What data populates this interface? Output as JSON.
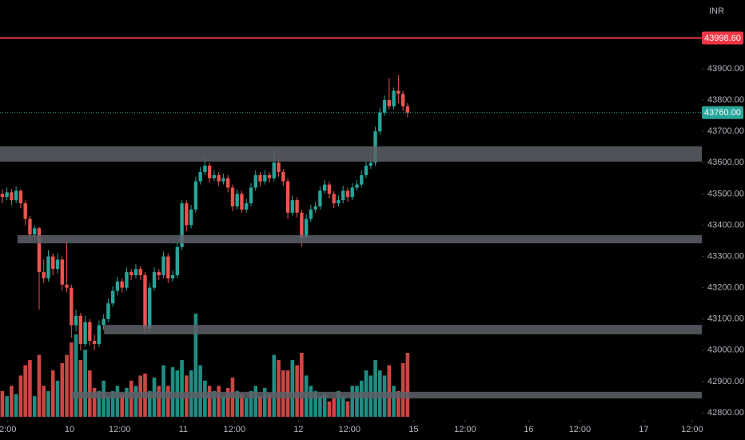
{
  "chart_data": {
    "type": "candlestick",
    "currency": "INR",
    "up_color": "#26a69a",
    "down_color": "#ef5350",
    "zone_color": "#5d6068",
    "ylim": [
      42777,
      44120
    ],
    "yticks": [
      {
        "value": 42800,
        "label": "42800.00"
      },
      {
        "value": 42900,
        "label": "42900.00"
      },
      {
        "value": 43000,
        "label": "43000.00"
      },
      {
        "value": 43100,
        "label": "43100.00"
      },
      {
        "value": 43200,
        "label": "43200.00"
      },
      {
        "value": 43300,
        "label": "43300.00"
      },
      {
        "value": 43400,
        "label": "43400.00"
      },
      {
        "value": 43500,
        "label": "43500.00"
      },
      {
        "value": 43600,
        "label": "43600.00"
      },
      {
        "value": 43700,
        "label": "43700.00"
      },
      {
        "value": 43800,
        "label": "43800.00"
      },
      {
        "value": 43900,
        "label": "43900.00"
      }
    ],
    "xlim": [
      -0.5,
      151.9
    ],
    "xticks": [
      {
        "value": 1.2,
        "label": "2:00"
      },
      {
        "value": 14.6,
        "label": "10"
      },
      {
        "value": 25.5,
        "label": "12:00"
      },
      {
        "value": 39.3,
        "label": "11"
      },
      {
        "value": 50.4,
        "label": "12:00"
      },
      {
        "value": 64.3,
        "label": "12"
      },
      {
        "value": 75.4,
        "label": "12:00"
      },
      {
        "value": 89.3,
        "label": "15"
      },
      {
        "value": 100.5,
        "label": "12:00"
      },
      {
        "value": 114.3,
        "label": "16"
      },
      {
        "value": 125.4,
        "label": "12:00"
      },
      {
        "value": 139.3,
        "label": "17"
      },
      {
        "value": 149.8,
        "label": "12:00"
      }
    ],
    "price_lines": [
      {
        "value": 43998.6,
        "label": "43998.60",
        "color": "#f23645",
        "style": "solid"
      },
      {
        "value": 43760,
        "label": "43760.00",
        "color": "#26a69a",
        "style": "dotted"
      }
    ],
    "zones": [
      {
        "from": 43603,
        "to": 43652,
        "start": -0.5
      },
      {
        "from": 43342,
        "to": 43368,
        "start": 3.3
      },
      {
        "from": 43051,
        "to": 43081,
        "start": 22.1
      },
      {
        "from": 42846,
        "to": 42867,
        "start": 15.1
      }
    ],
    "candles": [
      [
        43500,
        43515,
        43470,
        43490
      ],
      [
        43490,
        43520,
        43480,
        43505
      ],
      [
        43505,
        43515,
        43465,
        43480
      ],
      [
        43480,
        43525,
        43470,
        43510
      ],
      [
        43510,
        43515,
        43455,
        43470
      ],
      [
        43470,
        43480,
        43400,
        43420
      ],
      [
        43420,
        43430,
        43350,
        43370
      ],
      [
        43370,
        43400,
        43355,
        43390
      ],
      [
        43390,
        43395,
        43130,
        43250
      ],
      [
        43250,
        43290,
        43215,
        43230
      ],
      [
        43230,
        43320,
        43220,
        43300
      ],
      [
        43300,
        43310,
        43240,
        43260
      ],
      [
        43260,
        43310,
        43245,
        43290
      ],
      [
        43290,
        43300,
        43190,
        43210
      ],
      [
        43210,
        43360,
        43185,
        43200
      ],
      [
        43200,
        43210,
        43040,
        43080
      ],
      [
        43080,
        43130,
        43060,
        43110
      ],
      [
        43110,
        43120,
        43000,
        43020
      ],
      [
        43020,
        43110,
        43010,
        43090
      ],
      [
        43090,
        43100,
        43015,
        43030
      ],
      [
        43030,
        43050,
        43000,
        43020
      ],
      [
        43020,
        43095,
        43010,
        43080
      ],
      [
        43080,
        43115,
        43065,
        43100
      ],
      [
        43100,
        43165,
        43090,
        43150
      ],
      [
        43150,
        43205,
        43140,
        43190
      ],
      [
        43190,
        43235,
        43175,
        43220
      ],
      [
        43220,
        43230,
        43185,
        43200
      ],
      [
        43200,
        43265,
        43190,
        43250
      ],
      [
        43250,
        43260,
        43225,
        43240
      ],
      [
        43240,
        43275,
        43230,
        43260
      ],
      [
        43260,
        43270,
        43225,
        43240
      ],
      [
        43240,
        43250,
        43055,
        43070
      ],
      [
        43070,
        43215,
        43060,
        43200
      ],
      [
        43200,
        43265,
        43190,
        43250
      ],
      [
        43250,
        43260,
        43225,
        43240
      ],
      [
        43240,
        43315,
        43230,
        43300
      ],
      [
        43300,
        43310,
        43215,
        43230
      ],
      [
        43230,
        43255,
        43220,
        43240
      ],
      [
        43240,
        43345,
        43230,
        43330
      ],
      [
        43330,
        43480,
        43320,
        43470
      ],
      [
        43470,
        43480,
        43380,
        43400
      ],
      [
        43400,
        43465,
        43390,
        43450
      ],
      [
        43450,
        43555,
        43440,
        43540
      ],
      [
        43540,
        43585,
        43530,
        43570
      ],
      [
        43570,
        43620,
        43560,
        43590
      ],
      [
        43590,
        43600,
        43535,
        43550
      ],
      [
        43550,
        43575,
        43540,
        43560
      ],
      [
        43560,
        43570,
        43525,
        43540
      ],
      [
        43540,
        43565,
        43530,
        43550
      ],
      [
        43550,
        43560,
        43505,
        43520
      ],
      [
        43520,
        43530,
        43445,
        43460
      ],
      [
        43460,
        43515,
        43450,
        43500
      ],
      [
        43500,
        43510,
        43440,
        43450
      ],
      [
        43450,
        43485,
        43440,
        43470
      ],
      [
        43470,
        43535,
        43460,
        43520
      ],
      [
        43520,
        43575,
        43510,
        43560
      ],
      [
        43560,
        43570,
        43525,
        43540
      ],
      [
        43540,
        43575,
        43530,
        43560
      ],
      [
        43560,
        43570,
        43535,
        43550
      ],
      [
        43550,
        43640,
        43540,
        43600
      ],
      [
        43600,
        43610,
        43555,
        43570
      ],
      [
        43570,
        43580,
        43525,
        43540
      ],
      [
        43540,
        43550,
        43420,
        43440
      ],
      [
        43440,
        43495,
        43430,
        43480
      ],
      [
        43480,
        43490,
        43425,
        43440
      ],
      [
        43440,
        43450,
        43330,
        43360
      ],
      [
        43360,
        43435,
        43350,
        43420
      ],
      [
        43420,
        43465,
        43410,
        43450
      ],
      [
        43450,
        43475,
        43440,
        43460
      ],
      [
        43460,
        43525,
        43450,
        43510
      ],
      [
        43510,
        43545,
        43500,
        43530
      ],
      [
        43530,
        43540,
        43485,
        43500
      ],
      [
        43500,
        43510,
        43455,
        43470
      ],
      [
        43470,
        43495,
        43460,
        43480
      ],
      [
        43480,
        43525,
        43470,
        43510
      ],
      [
        43510,
        43520,
        43475,
        43490
      ],
      [
        43490,
        43535,
        43480,
        43520
      ],
      [
        43520,
        43545,
        43510,
        43530
      ],
      [
        43530,
        43575,
        43520,
        43560
      ],
      [
        43560,
        43605,
        43550,
        43590
      ],
      [
        43590,
        43615,
        43580,
        43600
      ],
      [
        43600,
        43715,
        43590,
        43700
      ],
      [
        43700,
        43775,
        43690,
        43760
      ],
      [
        43760,
        43815,
        43750,
        43800
      ],
      [
        43800,
        43870,
        43770,
        43780
      ],
      [
        43780,
        43840,
        43770,
        43830
      ],
      [
        43830,
        43880,
        43790,
        43820
      ],
      [
        43820,
        43830,
        43765,
        43780
      ],
      [
        43780,
        43790,
        43745,
        43760
      ]
    ],
    "volumes": [
      25,
      20,
      30,
      22,
      40,
      50,
      55,
      20,
      60,
      30,
      25,
      45,
      35,
      52,
      60,
      72,
      80,
      55,
      65,
      45,
      28,
      25,
      35,
      20,
      25,
      30,
      22,
      28,
      35,
      30,
      40,
      42,
      25,
      38,
      30,
      50,
      30,
      48,
      45,
      55,
      40,
      45,
      100,
      50,
      35,
      30,
      25,
      30,
      20,
      28,
      38,
      25,
      22,
      18,
      25,
      30,
      20,
      28,
      22,
      60,
      55,
      45,
      45,
      55,
      50,
      62,
      40,
      30,
      25,
      20,
      22,
      15,
      18,
      25,
      20,
      15,
      30,
      30,
      35,
      45,
      40,
      55,
      45,
      40,
      50,
      30,
      25,
      52,
      62
    ]
  }
}
